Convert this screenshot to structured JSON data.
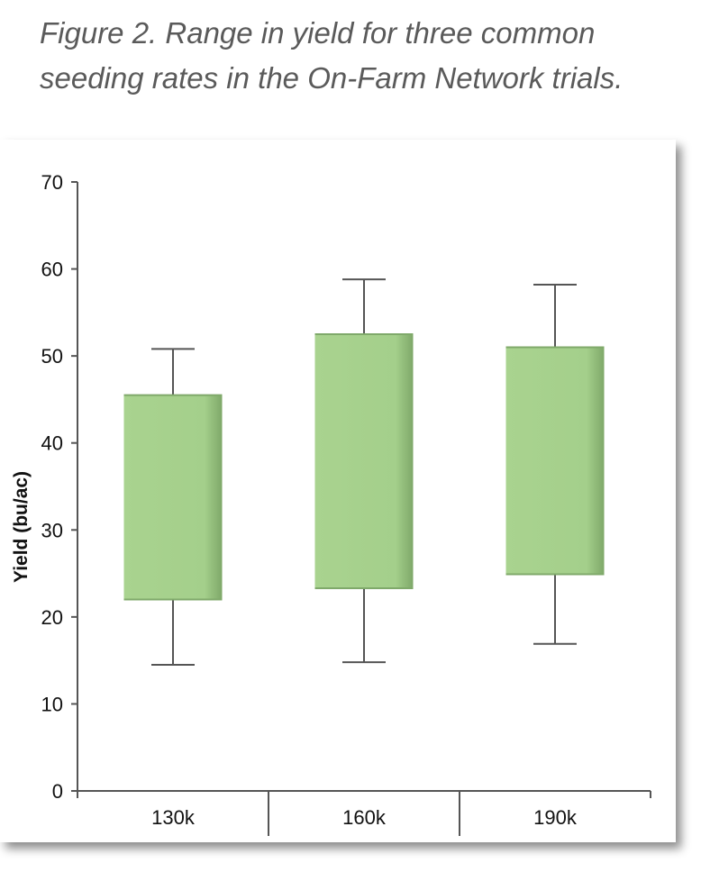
{
  "caption": "Figure 2. Range in yield for three common seeding rates in the On-Farm Network trials.",
  "colors": {
    "box": "#a8d290",
    "box_edge": "#7fa96a",
    "axis": "#555555",
    "whisker": "#555555"
  },
  "chart_data": {
    "type": "boxplot",
    "title": "Figure 2. Range in yield for three common seeding rates in the On-Farm Network trials.",
    "xlabel": "",
    "ylabel": "Yield (bu/ac)",
    "ylim": [
      0,
      70
    ],
    "yticks": [
      0,
      10,
      20,
      30,
      40,
      50,
      60,
      70
    ],
    "grid": false,
    "categories": [
      "130k",
      "160k",
      "190k"
    ],
    "boxes": [
      {
        "category": "130k",
        "min": 14.5,
        "q1": 22,
        "q3": 45.5,
        "max": 50.8
      },
      {
        "category": "160k",
        "min": 14.8,
        "q1": 23.3,
        "q3": 52.5,
        "max": 58.8
      },
      {
        "category": "190k",
        "min": 16.9,
        "q1": 24.9,
        "q3": 51,
        "max": 58.2
      }
    ]
  }
}
